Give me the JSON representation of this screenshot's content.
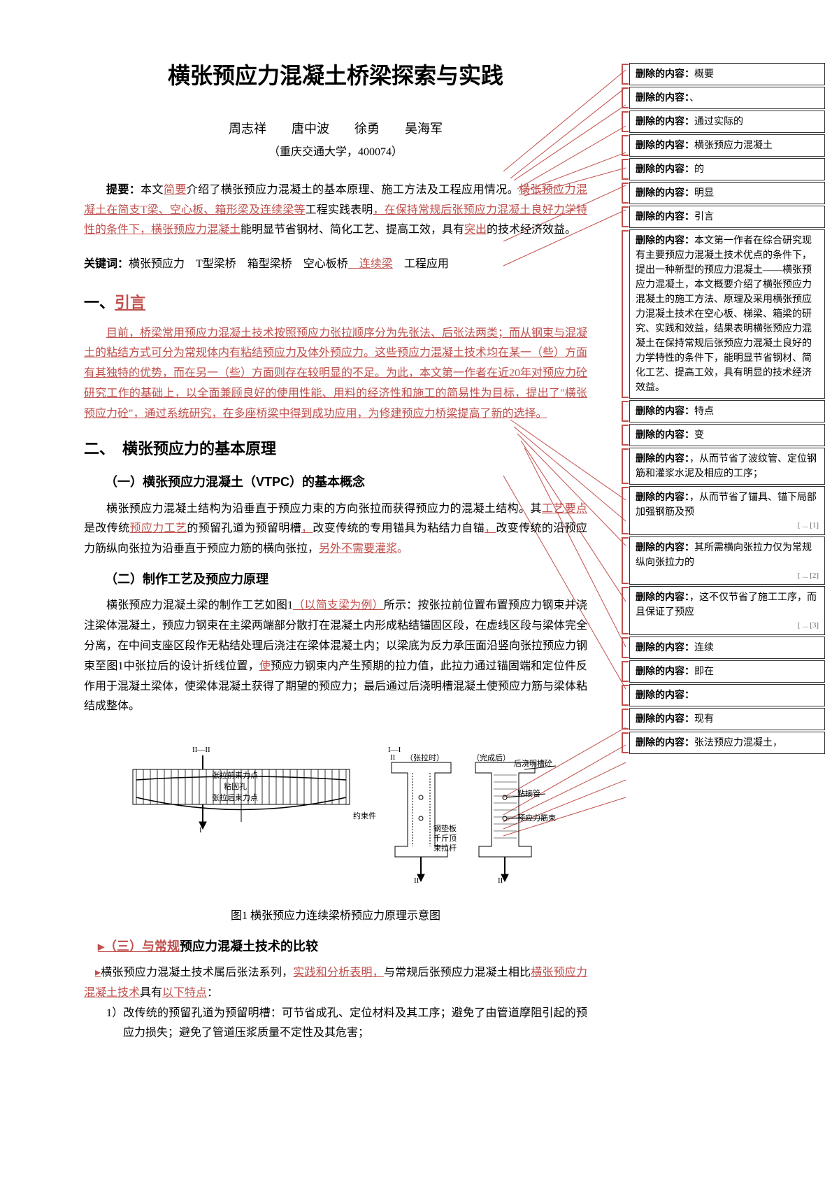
{
  "title": "横张预应力混凝土桥梁探索与实践",
  "authors": "周志祥　　唐中波　　徐勇　　吴海军",
  "affiliation": "（重庆交通大学，400074）",
  "abstract_label": "提要：",
  "abstract_p1": "本文",
  "abstract_ins1": "简要",
  "abstract_p2": "介绍了横张预应力混凝土的基本原理、施工方法及工程应用情况。",
  "abstract_ins2": "横张预应力混凝土在简支T梁、空心板、箱形梁及连续梁等",
  "abstract_p3": "工程实践表明",
  "abstract_ins3": "，在保持常规后张预应力混凝土良好力学特性的条件下，横张预应力混凝土",
  "abstract_p4": "能明显节省钢材、简化工艺、提高工效，具有",
  "abstract_ins4": "突出",
  "abstract_p5": "的技术经济效益。",
  "keywords_label": "关键词：",
  "keywords_text": "横张预应力　T型梁桥　箱型梁桥　空心板桥",
  "keywords_ins": "　连续梁",
  "keywords_text2": "　工程应用",
  "h1": "一、",
  "h1_ins": "引言",
  "p_intro": "目前，桥梁常用预应力混凝土技术按照预应力张拉顺序分为先张法、后张法两类；而从钢束与混凝土的粘结方式可分为常规体内有粘结预应力及体外预应力。这些预应力混凝土技术均在某一（些）方面有其独特的优势，而在另一（些）方面则存在较明显的不足。为此，本文第一作者在近20年对预应力砼研究工作的基础上，以全面兼顾良好的使用性能、用料的经济性和施工的简易性为目标，提出了\"横张预应力砼\"，通过系统研究，在多座桥梁中得到成功应用，为修建预应力桥梁提高了新的选择。",
  "h2": "二、　横张预应力的基本原理",
  "h3a": "（一）横张预应力混凝土（VTPC）的基本概念",
  "p2a": "横张预应力混凝土结构为沿垂直于预应力束的方向张拉而获得预应力的混凝土结构。其",
  "p2a_ins1": "工艺要点",
  "p2a_2": "是改传统",
  "p2a_ins2": "预应力工艺",
  "p2a_3": "的预留孔道为预留明槽",
  "p2a_ins3": "，",
  "p2a_4": "改变传统的专用锚具为粘结力自锚",
  "p2a_ins4": "，",
  "p2a_5": "改变传统的沿预应力筋纵向张拉为沿垂直于预应力筋的横向张拉，",
  "p2a_ins5": "另外不需要灌浆",
  "p2a_6": "。",
  "h3b": "（二）制作工艺及预应力原理",
  "p2b_1": "横张预应力混凝土梁的制作工艺如图1",
  "p2b_ins1": "（以简支梁为例）",
  "p2b_2": "所示：按张拉前位置布置预应力钢束并浇注梁体混凝土，预应力钢束在主梁两端部分散打在混凝土内形成粘结锚固区段，在虚线区段与梁体完全分离，在中间支座区段作无粘结处理后浇注在梁体混凝土内；以梁底为反力承压面沿竖向张拉预应力钢束至图1中张拉后的设计折线位置，",
  "p2b_ins2": "使",
  "p2b_3": "预应力钢束内产生预期的拉力值，此拉力通过锚固端和定位件反作用于混凝土梁体，使梁体混凝土获得了期望的预应力；最后通过后浇明槽混凝土使预应力筋与梁体粘结成整体。",
  "fig_caption": "图1 横张预应力连续梁桥预应力原理示意图",
  "h3c_ins": "（三）与",
  "h3c_ins2": "常规",
  "h3c_rest": "预应力混凝土技术的比较",
  "p3_1": "横张预应力混凝土技术属后张法系列，",
  "p3_ins1": "实践和分析表明，",
  "p3_2": "与常规后张预应力混凝土相比",
  "p3_ins2": "横张预应力混凝土技术",
  "p3_3": "具有",
  "p3_ins3": "以下特点",
  "p3_4": "：",
  "item1": "1）改传统的预留孔道为预留明槽：可节省成孔、定位材料及其工序；避免了由管道摩阻引起的预应力损失；避免了管道压浆质量不定性及其危害；",
  "fig_labels": {
    "ii": "II—II",
    "i": "I—I",
    "ii2": "II",
    "i2": "I",
    "ii3": "II",
    "i3": "I",
    "l1": "张拉前束力点",
    "l2": "粘固孔",
    "l3": "张拉后束力点",
    "l4": "（张拉时）",
    "l5": "（完成后）",
    "l6": "后浇明槽砼",
    "l7": "粘接管",
    "l8": "预应力筋束",
    "l9": "约束件",
    "l10": "钢垫板",
    "l11": "千斤顶",
    "l12": "束拉杆"
  },
  "fig_colors": {
    "line": "#000",
    "hatch": "#000",
    "text": "#000",
    "bg": "#fff"
  },
  "revisions": [
    {
      "label": "删除的内容：",
      "text": "概要"
    },
    {
      "label": "删除的内容：",
      "text": "、"
    },
    {
      "label": "删除的内容：",
      "text": "通过实际的"
    },
    {
      "label": "删除的内容：",
      "text": "横张预应力混凝土"
    },
    {
      "label": "删除的内容：",
      "text": "的"
    },
    {
      "label": "删除的内容：",
      "text": "明显"
    },
    {
      "label": "删除的内容：",
      "text": "引言"
    },
    {
      "label": "删除的内容：",
      "text": "本文第一作者在综合研究现有主要预应力混凝土技术优点的条件下，提出一种新型的预应力混凝土——横张预应力混凝土，本文概要介绍了横张预应力混凝土的施工方法、原理及采用横张预应力混凝土技术在空心板、梯梁、箱梁的研究、实践和效益，结果表明横张预应力混凝土在保持常规后张预应力混凝土良好的力学特性的条件下，能明显节省钢材、简化工艺、提高工效，具有明显的技术经济效益。"
    },
    {
      "label": "删除的内容：",
      "text": "特点"
    },
    {
      "label": "删除的内容：",
      "text": "变"
    },
    {
      "label": "删除的内容：",
      "text": "，从而节省了波纹管、定位钢筋和灌浆水泥及相应的工序；"
    },
    {
      "label": "删除的内容：",
      "text": "，从而节省了锚具、锚下局部加强钢筋及预",
      "dots": "[ ... [1]"
    },
    {
      "label": "删除的内容：",
      "text": "其所需横向张拉力仅为常规纵向张拉力的",
      "dots": "[ ... [2]"
    },
    {
      "label": "删除的内容：",
      "text": "，这不仅节省了施工工序，而且保证了预应",
      "dots": "[ ... [3]"
    },
    {
      "label": "删除的内容：",
      "text": "连续"
    },
    {
      "label": "删除的内容：",
      "text": "即在"
    },
    {
      "label": "删除的内容：",
      "text": ""
    },
    {
      "label": "删除的内容：",
      "text": "现有"
    },
    {
      "label": "删除的内容：",
      "text": "张法预应力混凝土，"
    }
  ]
}
